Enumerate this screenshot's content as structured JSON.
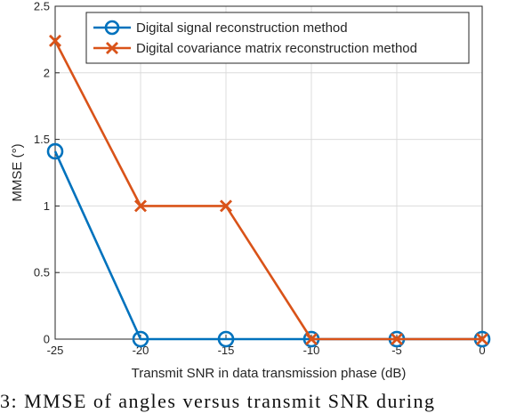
{
  "chart_data": {
    "type": "line",
    "title": "",
    "xlabel": "Transmit SNR in data transmission phase (dB)",
    "ylabel": "MMSE (°)",
    "x": [
      -25,
      -20,
      -15,
      -10,
      -5,
      0
    ],
    "xlim": [
      -25,
      0
    ],
    "ylim": [
      0,
      2.5
    ],
    "x_ticks": [
      "-25",
      "-20",
      "-15",
      "-10",
      "-5",
      "0"
    ],
    "y_ticks": [
      "0",
      "0.5",
      "1",
      "1.5",
      "2",
      "2.5"
    ],
    "grid": true,
    "legend_position": "top-right",
    "series": [
      {
        "name": "Digital signal reconstruction method",
        "marker": "circle",
        "color": "#0072BD",
        "values": [
          1.41,
          0,
          0,
          0,
          0,
          0
        ]
      },
      {
        "name": "Digital covariance matrix reconstruction method",
        "marker": "x",
        "color": "#D95319",
        "values": [
          2.24,
          1.0,
          1.0,
          0,
          0,
          0
        ]
      }
    ]
  },
  "caption": "3: MMSE of angles versus transmit SNR during"
}
